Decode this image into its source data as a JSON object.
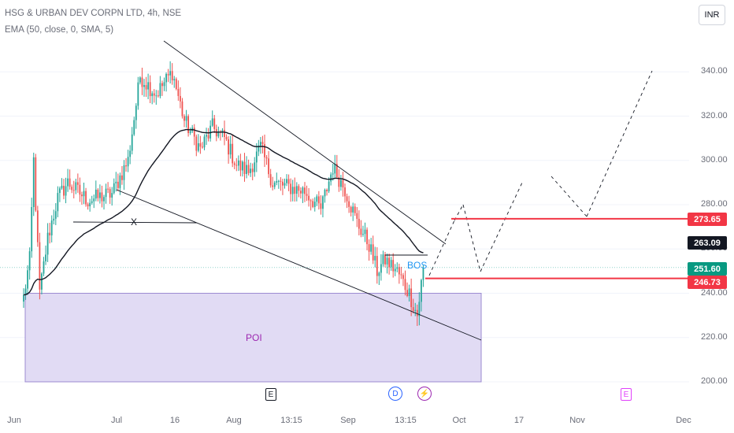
{
  "header": {
    "title": "HSG & URBAN DEV CORPN LTD, 4h, NSE",
    "indicator": "EMA (50, close, 0, SMA, 5)"
  },
  "currency_button": "INR",
  "colors": {
    "up": "#26a69a",
    "down": "#ef5350",
    "ema": "#131722",
    "level": "#f23645",
    "poi_fill": "#e1dbf4",
    "poi_stroke": "#9c8bd1"
  },
  "chart_data": {
    "type": "candlestick",
    "symbol": "HSG & URBAN DEV CORPN LTD",
    "timeframe": "4h",
    "exchange": "NSE",
    "y_ticks": [
      200,
      220,
      240,
      260,
      280,
      300,
      320,
      340
    ],
    "x_ticks": [
      "Jun",
      "Jul",
      "16",
      "Aug",
      "13:15",
      "Sep",
      "13:15",
      "Oct",
      "17",
      "Nov",
      "Dec"
    ],
    "price_labels": [
      {
        "value": "273.65",
        "kind": "level"
      },
      {
        "value": "263.09",
        "kind": "ema"
      },
      {
        "value": "251.60",
        "kind": "last"
      },
      {
        "value": "246.73",
        "kind": "level"
      }
    ],
    "anchors": [
      {
        "bar": 0,
        "close": 238
      },
      {
        "bar": 3,
        "close": 255
      },
      {
        "bar": 5,
        "close": 300
      },
      {
        "bar": 8,
        "close": 240
      },
      {
        "bar": 12,
        "close": 265
      },
      {
        "bar": 17,
        "close": 283
      },
      {
        "bar": 22,
        "close": 290
      },
      {
        "bar": 32,
        "close": 282
      },
      {
        "bar": 44,
        "close": 285
      },
      {
        "bar": 52,
        "close": 300
      },
      {
        "bar": 58,
        "close": 338
      },
      {
        "bar": 66,
        "close": 330
      },
      {
        "bar": 74,
        "close": 340
      },
      {
        "bar": 80,
        "close": 318
      },
      {
        "bar": 88,
        "close": 305
      },
      {
        "bar": 94,
        "close": 315
      },
      {
        "bar": 100,
        "close": 310
      },
      {
        "bar": 106,
        "close": 298
      },
      {
        "bar": 112,
        "close": 295
      },
      {
        "bar": 118,
        "close": 306
      },
      {
        "bar": 124,
        "close": 290
      },
      {
        "bar": 132,
        "close": 288
      },
      {
        "bar": 140,
        "close": 286
      },
      {
        "bar": 148,
        "close": 278
      },
      {
        "bar": 154,
        "close": 297
      },
      {
        "bar": 160,
        "close": 287
      },
      {
        "bar": 166,
        "close": 272
      },
      {
        "bar": 172,
        "close": 262
      },
      {
        "bar": 176,
        "close": 250
      },
      {
        "bar": 180,
        "close": 255
      },
      {
        "bar": 186,
        "close": 250
      },
      {
        "bar": 192,
        "close": 240
      },
      {
        "bar": 196,
        "close": 230
      },
      {
        "bar": 199,
        "close": 251.6
      }
    ],
    "total_bars": 200,
    "ema_period": 50,
    "levels": [
      273.65,
      246.73
    ],
    "poi_zone": {
      "top": 240,
      "bottom": 200,
      "label": "POI"
    },
    "annotations": [
      "X",
      "BOS",
      "POI"
    ],
    "events": [
      "E",
      "D",
      "⚡",
      "E"
    ]
  }
}
